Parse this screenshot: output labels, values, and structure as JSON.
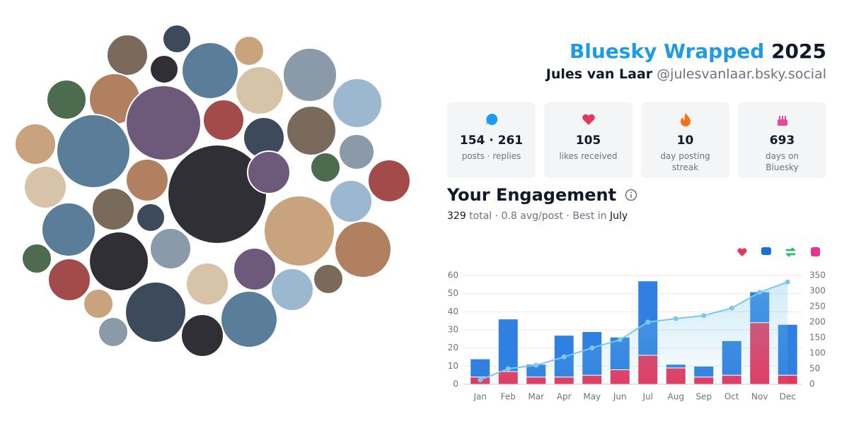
{
  "header": {
    "title": "Bluesky Wrapped",
    "year": "2025",
    "name": "Jules van Laar",
    "handle": "@julesvanlaar.bsky.social"
  },
  "stats": [
    {
      "value": "154 · 261",
      "label": "posts · replies"
    },
    {
      "value": "105",
      "label": "likes received"
    },
    {
      "value": "10",
      "label": "day posting streak"
    },
    {
      "value": "693",
      "label": "days on Bluesky"
    }
  ],
  "engagement": {
    "title": "Your Engagement",
    "total": "329",
    "summary": "total · 0.8 avg/post · Best in",
    "best": "July"
  },
  "chart_data": {
    "type": "bar",
    "stacked": true,
    "categories": [
      "Jan",
      "Feb",
      "Mar",
      "Apr",
      "May",
      "Jun",
      "Jul",
      "Aug",
      "Sep",
      "Oct",
      "Nov",
      "Dec"
    ],
    "series": [
      {
        "color": "#e3385e",
        "values": [
          4,
          7,
          4,
          4,
          5,
          8,
          16,
          9,
          4,
          5,
          34,
          5
        ]
      },
      {
        "color": "#2f80e0",
        "values": [
          10,
          29,
          7,
          23,
          24,
          18,
          41,
          2,
          6,
          19,
          17,
          28
        ]
      },
      {
        "type": "line",
        "axis": "y2",
        "color": "#7cc8ec",
        "values": [
          14,
          50,
          61,
          88,
          117,
          143,
          200,
          211,
          221,
          245,
          296,
          329
        ]
      }
    ],
    "ylim": [
      0,
      60
    ],
    "yticks": [
      0,
      10,
      20,
      30,
      40,
      50,
      60
    ],
    "y2lim": [
      0,
      350
    ],
    "y2ticks": [
      0,
      50,
      100,
      150,
      200,
      250,
      300,
      350
    ],
    "grid": true
  }
}
